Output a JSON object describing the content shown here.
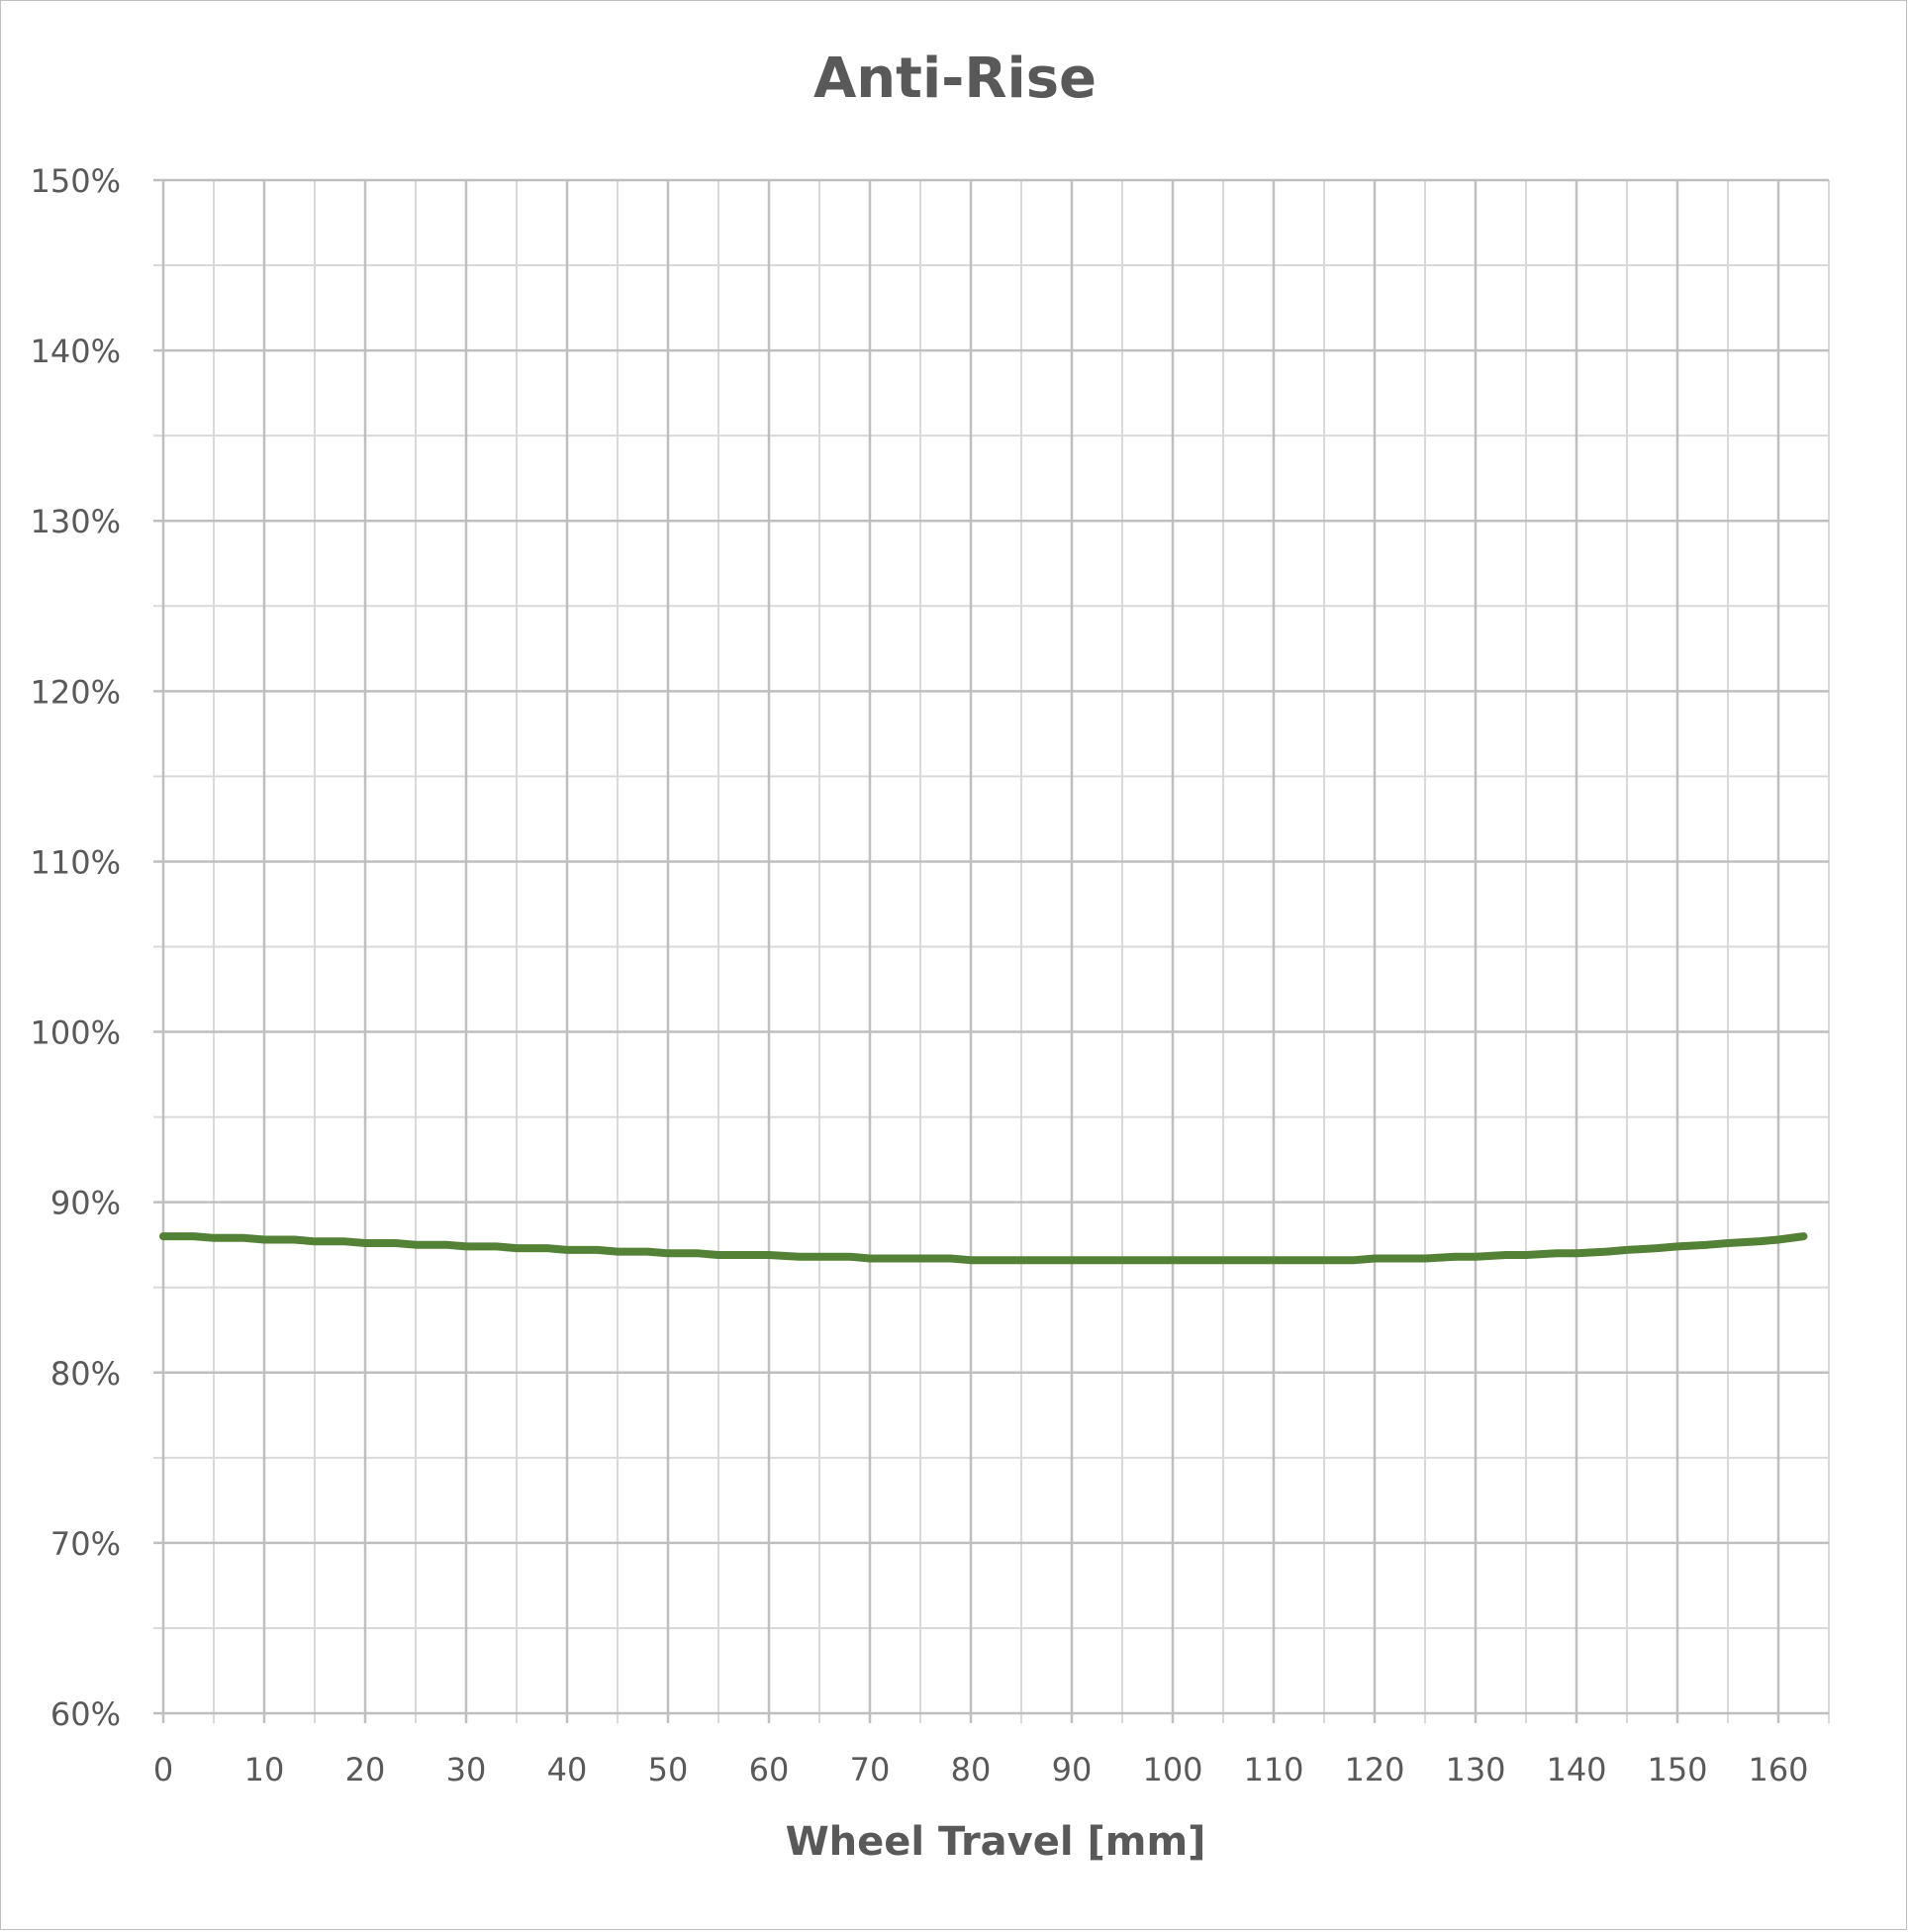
{
  "chart_data": {
    "type": "line",
    "title": "Anti-Rise",
    "xlabel": "Wheel Travel [mm]",
    "ylabel": "",
    "xlim": [
      0,
      165
    ],
    "ylim": [
      60,
      150
    ],
    "x_ticks": [
      "0",
      "10",
      "20",
      "30",
      "40",
      "50",
      "60",
      "70",
      "80",
      "90",
      "100",
      "110",
      "120",
      "130",
      "140",
      "150",
      "160"
    ],
    "y_ticks": [
      "60%",
      "70%",
      "80%",
      "90%",
      "100%",
      "110%",
      "120%",
      "130%",
      "140%",
      "150%"
    ],
    "grid": true,
    "line_color": "#538135",
    "series": [
      {
        "x": [
          0,
          3,
          5,
          8,
          10,
          13,
          15,
          18,
          20,
          23,
          25,
          28,
          30,
          33,
          35,
          38,
          40,
          43,
          45,
          48,
          50,
          53,
          55,
          58,
          60,
          63,
          65,
          68,
          70,
          73,
          75,
          78,
          80,
          83,
          85,
          88,
          90,
          93,
          95,
          98,
          100,
          103,
          105,
          108,
          110,
          113,
          115,
          118,
          120,
          123,
          125,
          128,
          130,
          133,
          135,
          138,
          140,
          143,
          145,
          148,
          150,
          153,
          155,
          158,
          160,
          162.5
        ],
        "values": [
          88.0,
          88.0,
          87.9,
          87.9,
          87.8,
          87.8,
          87.7,
          87.7,
          87.6,
          87.6,
          87.5,
          87.5,
          87.4,
          87.4,
          87.3,
          87.3,
          87.2,
          87.2,
          87.1,
          87.1,
          87.0,
          87.0,
          86.9,
          86.9,
          86.9,
          86.8,
          86.8,
          86.8,
          86.7,
          86.7,
          86.7,
          86.7,
          86.6,
          86.6,
          86.6,
          86.6,
          86.6,
          86.6,
          86.6,
          86.6,
          86.6,
          86.6,
          86.6,
          86.6,
          86.6,
          86.6,
          86.6,
          86.6,
          86.7,
          86.7,
          86.7,
          86.8,
          86.8,
          86.9,
          86.9,
          87.0,
          87.0,
          87.1,
          87.2,
          87.3,
          87.4,
          87.5,
          87.6,
          87.7,
          87.8,
          88.0
        ]
      }
    ]
  }
}
